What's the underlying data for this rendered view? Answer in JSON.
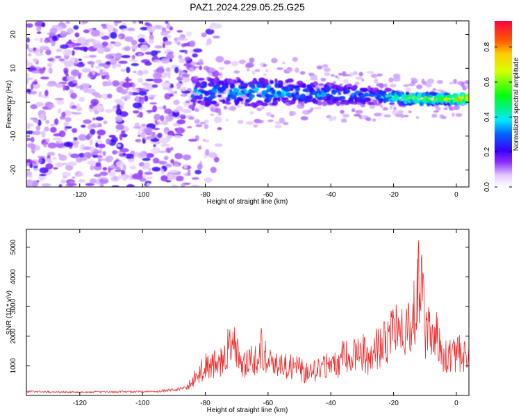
{
  "title": "PAZ1.2024.229.05.25.G25",
  "chart_data": [
    {
      "type": "heatmap",
      "xlabel": "Height of straight line (km)",
      "ylabel": "Frequency (Hz)",
      "xlim": [
        -137,
        4
      ],
      "ylim": [
        -25,
        24
      ],
      "xticks": [
        -120,
        -100,
        -80,
        -60,
        -40,
        -20,
        0
      ],
      "yticks": [
        -20,
        -10,
        0,
        10,
        20
      ],
      "colorbar": {
        "label": "Normalized spectral amplitude",
        "range": [
          0,
          0.95
        ],
        "ticks": [
          0.0,
          0.2,
          0.4,
          0.6,
          0.8
        ]
      },
      "signal_center_hz": [
        [
          -83,
          3
        ],
        [
          -70,
          3
        ],
        [
          -60,
          3
        ],
        [
          -50,
          3
        ],
        [
          -40,
          2.5
        ],
        [
          -30,
          2
        ],
        [
          -20,
          1.5
        ],
        [
          -10,
          1
        ],
        [
          0,
          1
        ],
        [
          4,
          1
        ]
      ],
      "signal_band_halfwidth_hz": [
        [
          -83,
          4
        ],
        [
          -60,
          4
        ],
        [
          -40,
          3
        ],
        [
          -20,
          2
        ],
        [
          0,
          1.5
        ]
      ],
      "signal_peak_amplitude": [
        [
          -83,
          0.35
        ],
        [
          -60,
          0.4
        ],
        [
          -40,
          0.35
        ],
        [
          -25,
          0.35
        ],
        [
          -20,
          0.5
        ],
        [
          -10,
          0.65
        ],
        [
          0,
          0.75
        ],
        [
          4,
          0.9
        ]
      ],
      "noise_region_km": [
        -137,
        -85
      ],
      "grid": false,
      "legend": "none"
    },
    {
      "type": "line",
      "xlabel": "Height of straight line (km)",
      "ylabel": "SNR (10 * v/v)",
      "xlim": [
        -137,
        4
      ],
      "ylim": [
        0,
        5600
      ],
      "xticks": [
        -120,
        -100,
        -80,
        -60,
        -40,
        -20,
        0
      ],
      "yticks": [
        1000,
        2000,
        3000,
        4000,
        5000
      ],
      "color": "#ee2b2b",
      "series": [
        {
          "name": "",
          "x": [
            -137,
            -130,
            -120,
            -110,
            -100,
            -95,
            -90,
            -86,
            -84,
            -82,
            -80,
            -78,
            -76,
            -74,
            -72,
            -70,
            -68,
            -66,
            -64,
            -62,
            -60,
            -58,
            -56,
            -54,
            -52,
            -50,
            -48,
            -46,
            -44,
            -42,
            -40,
            -38,
            -36,
            -34,
            -32,
            -30,
            -28,
            -26,
            -24,
            -22,
            -20.5,
            -19,
            -17,
            -15,
            -13,
            -11.5,
            -10,
            -9,
            -8,
            -7,
            -6,
            -5,
            -4,
            -3,
            -1,
            0,
            2,
            3,
            4
          ],
          "y": [
            160,
            150,
            130,
            150,
            160,
            170,
            230,
            300,
            700,
            1000,
            1300,
            1350,
            1500,
            1600,
            2400,
            2000,
            1400,
            1600,
            1700,
            2300,
            1500,
            1300,
            1500,
            1300,
            1300,
            1200,
            1000,
            1100,
            1200,
            1300,
            1400,
            1300,
            1800,
            1600,
            1800,
            2000,
            1600,
            2000,
            2200,
            2400,
            3200,
            2800,
            2800,
            3200,
            4200,
            5200,
            3000,
            2800,
            3400,
            2900,
            2800,
            1800,
            1500,
            1800,
            1850,
            1900,
            2000,
            1900,
            1700
          ]
        }
      ],
      "grid": false,
      "legend": "none"
    }
  ]
}
